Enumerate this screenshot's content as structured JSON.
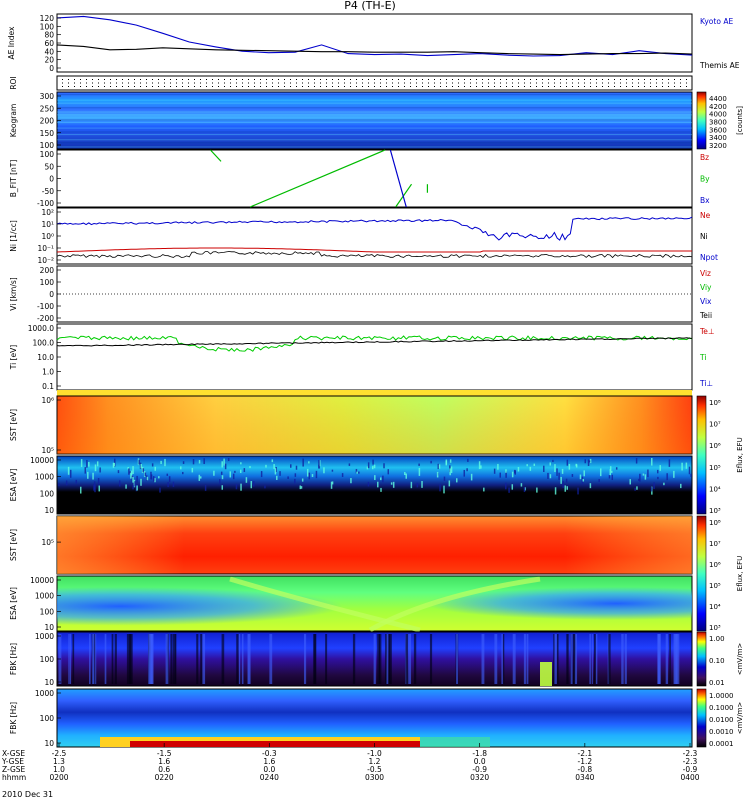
{
  "title": "P4 (TH-E)",
  "date_label": "2010 Dec 31",
  "chart_data": [
    {
      "id": "ae",
      "type": "line",
      "ylabel": "AE Index",
      "yticks": [
        "120",
        "100",
        "80",
        "60",
        "40",
        "20",
        "0"
      ],
      "ylim": [
        0,
        120
      ],
      "series": [
        {
          "name": "Kyoto AE",
          "color": "#0000cc",
          "x": [
            0,
            5,
            10,
            15,
            20,
            25,
            30,
            35,
            40,
            45,
            50,
            55,
            60,
            65,
            70,
            75,
            80,
            85,
            90,
            95,
            100,
            105,
            110,
            115,
            120
          ],
          "y": [
            112,
            115,
            108,
            97,
            80,
            62,
            52,
            43,
            40,
            41,
            56,
            38,
            36,
            37,
            34,
            36,
            38,
            35,
            33,
            34,
            40,
            36,
            44,
            38,
            35
          ]
        },
        {
          "name": "Themis AE",
          "color": "#000000",
          "x": [
            0,
            5,
            10,
            15,
            20,
            25,
            30,
            35,
            40,
            45,
            50,
            55,
            60,
            65,
            70,
            75,
            80,
            85,
            90,
            95,
            100,
            105,
            110,
            115,
            120
          ],
          "y": [
            56,
            53,
            46,
            47,
            50,
            48,
            46,
            45,
            44,
            43,
            42,
            42,
            41,
            41,
            41,
            42,
            40,
            38,
            37,
            36,
            37,
            38,
            38,
            39,
            37
          ]
        }
      ]
    },
    {
      "id": "roi",
      "type": "table",
      "ylabel": "ROI"
    },
    {
      "id": "keogram",
      "type": "heatmap",
      "ylabel": "Keogram",
      "yticks": [
        "300",
        "250",
        "200",
        "150",
        "100"
      ],
      "colorbar": {
        "label": "[counts]",
        "ticks": [
          "4400",
          "4200",
          "4000",
          "3800",
          "3600",
          "3400",
          "3200"
        ]
      }
    },
    {
      "id": "bfit",
      "type": "line",
      "ylabel": "B_FIT [nT]",
      "yticks": [
        "100",
        "50",
        "0",
        "-50",
        "-100"
      ],
      "ylim": [
        -100,
        100
      ],
      "series": [
        {
          "name": "Bz",
          "color": "#cc0000",
          "x": [],
          "y": []
        },
        {
          "name": "By",
          "color": "#00bb00",
          "x": [
            29,
            31,
            36.5,
            62,
            64,
            67,
            70,
            70
          ],
          "y": [
            100,
            60,
            -100,
            100,
            -100,
            -20,
            -50,
            -20
          ]
        },
        {
          "name": "Bx",
          "color": "#0000cc",
          "x": [
            63,
            66
          ],
          "y": [
            100,
            -100
          ]
        }
      ]
    },
    {
      "id": "ni",
      "type": "line",
      "ylabel": "Ni [1/cc]",
      "yticks": [
        "10²",
        "10¹",
        "10⁰",
        "10⁻¹",
        "10⁻²"
      ],
      "series": [
        {
          "name": "Ne",
          "color": "#cc0000",
          "x": [],
          "y": []
        },
        {
          "name": "Ni",
          "color": "#000000",
          "x": [],
          "y": []
        },
        {
          "name": "Npot",
          "color": "#0000cc",
          "x": [],
          "y": []
        }
      ]
    },
    {
      "id": "vi",
      "type": "line",
      "ylabel": "Vi [km/s]",
      "yticks": [
        "200",
        "100",
        "0",
        "-100",
        "-200"
      ],
      "ylim": [
        -250,
        250
      ],
      "series": [
        {
          "name": "Viz",
          "color": "#cc0000",
          "x": [],
          "y": []
        },
        {
          "name": "Viy",
          "color": "#00bb00",
          "x": [],
          "y": []
        },
        {
          "name": "Vix",
          "color": "#0000cc",
          "x": [],
          "y": []
        },
        {
          "name": "Teii",
          "color": "#000000",
          "x": [],
          "y": []
        }
      ]
    },
    {
      "id": "ti",
      "type": "line",
      "ylabel": "Ti [eV]",
      "yticks": [
        "1000.0",
        "100.0",
        "10.0",
        "1.0",
        "0.1"
      ],
      "series": [
        {
          "name": "Te⊥",
          "color": "#cc0000",
          "x": [],
          "y": []
        },
        {
          "name": "Ti",
          "color": "#00bb00",
          "x": [],
          "y": []
        },
        {
          "name": "Ti⊥",
          "color": "#0000cc",
          "x": [],
          "y": []
        }
      ]
    },
    {
      "id": "sst1",
      "type": "heatmap",
      "ylabel": "SST [eV]",
      "yticks": [
        "10⁶",
        "10⁵"
      ],
      "colorbar": {
        "label": "Eflux, EFU",
        "ticks": [
          "10⁸",
          "10⁷",
          "10⁶",
          "10⁵",
          "10⁴",
          "10³"
        ]
      }
    },
    {
      "id": "esa1",
      "type": "heatmap",
      "ylabel": "ESA [eV]",
      "yticks": [
        "10000",
        "1000",
        "100",
        "10"
      ],
      "colorbar": {
        "label": "Eflux, EFU",
        "ticks": [
          "10⁸",
          "10⁷",
          "10⁶",
          "10⁵",
          "10⁴",
          "10³"
        ]
      }
    },
    {
      "id": "sst2",
      "type": "heatmap",
      "ylabel": "SST [eV]",
      "yticks": [
        "10⁵"
      ],
      "colorbar": {
        "label": "Eflux, EFU",
        "ticks": [
          "10⁸",
          "10⁷",
          "10⁶",
          "10⁵",
          "10⁴",
          "10³"
        ]
      }
    },
    {
      "id": "esa2",
      "type": "heatmap",
      "ylabel": "ESA [eV]",
      "yticks": [
        "10000",
        "1000",
        "100",
        "10"
      ],
      "colorbar": {
        "label": "Eflux, EFU",
        "ticks": [
          "10⁸",
          "10⁷",
          "10⁶",
          "10⁵",
          "10⁴",
          "10³"
        ]
      }
    },
    {
      "id": "fbk1",
      "type": "heatmap",
      "ylabel": "FBK [Hz]",
      "yticks": [
        "1000",
        "100",
        "10"
      ],
      "colorbar": {
        "label": "<mV/m>",
        "ticks": [
          "1.00",
          "0.10",
          "0.01"
        ]
      }
    },
    {
      "id": "fbk2",
      "type": "heatmap",
      "ylabel": "FBK [Hz]",
      "yticks": [
        "1000",
        "100",
        "10"
      ],
      "colorbar": {
        "label": "<mV/m>",
        "ticks": [
          "1.0000",
          "0.1000",
          "0.0100",
          "0.0010",
          "0.0001"
        ]
      }
    }
  ],
  "xaxis": {
    "row_labels": [
      "X-GSE",
      "Y-GSE",
      "Z-GSE",
      "hhmm"
    ],
    "columns": [
      {
        "x": "-2.5",
        "y": "1.3",
        "z": "1.0",
        "t": "0200"
      },
      {
        "x": "-1.5",
        "y": "1.6",
        "z": "0.6",
        "t": "0220"
      },
      {
        "x": "-0.3",
        "y": "1.6",
        "z": "0.0",
        "t": "0240"
      },
      {
        "x": "-1.0",
        "y": "1.2",
        "z": "-0.5",
        "t": "0300"
      },
      {
        "x": "-1.8",
        "y": "0.0",
        "z": "-0.9",
        "t": "0320"
      },
      {
        "x": "-2.1",
        "y": "-1.2",
        "z": "-0.8",
        "t": "0340"
      },
      {
        "x": "-2.3",
        "y": "-2.3",
        "z": "-0.9",
        "t": "0400"
      }
    ]
  }
}
